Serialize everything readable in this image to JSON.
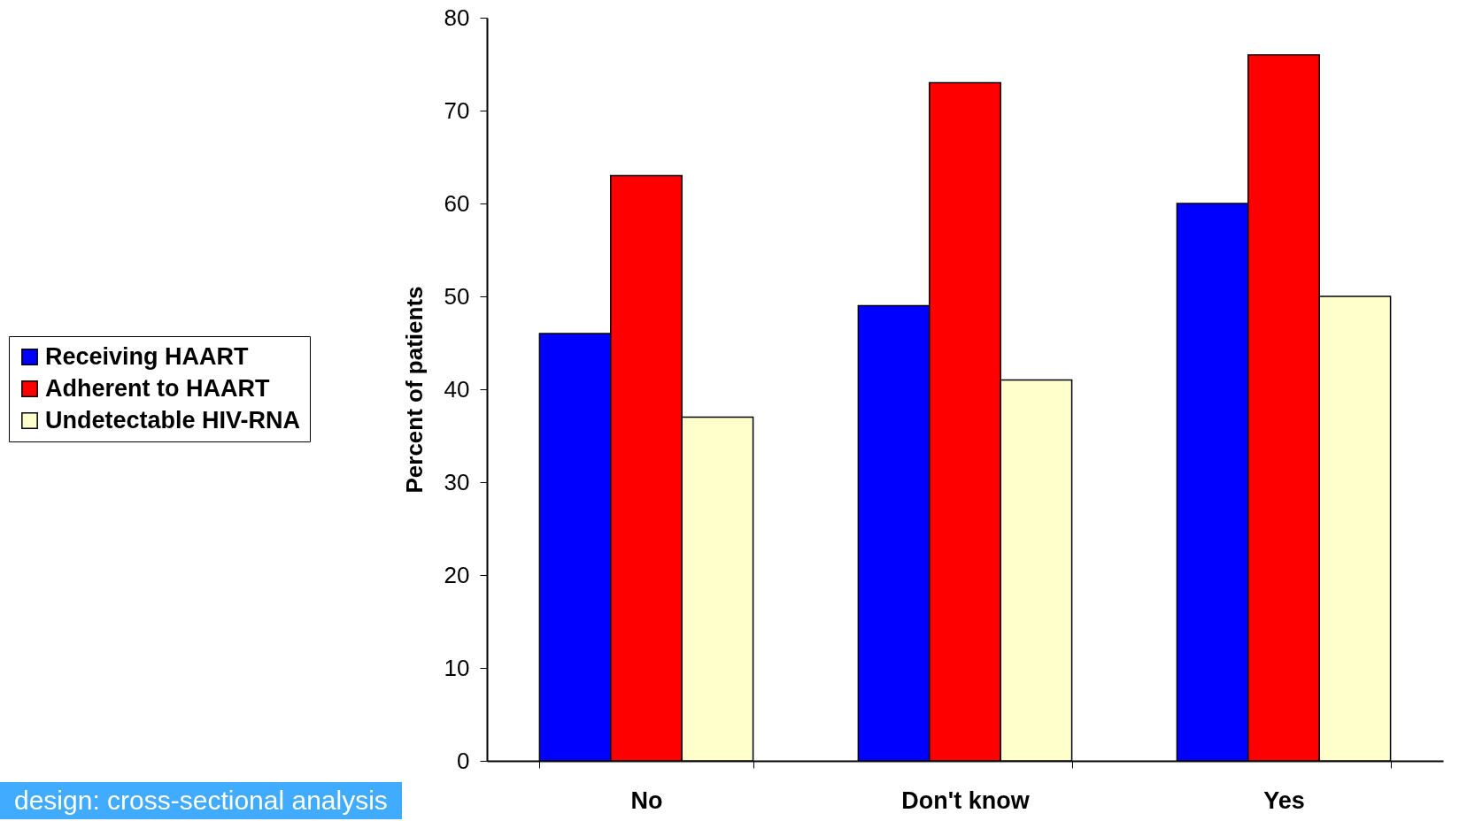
{
  "chart_data": {
    "type": "bar",
    "ylabel": "Percent of patients",
    "categories": [
      "No",
      "Don't know",
      "Yes"
    ],
    "series": [
      {
        "name": "Receiving HAART",
        "color": "#0000ff",
        "values": [
          46,
          49,
          60
        ]
      },
      {
        "name": "Adherent to HAART",
        "color": "#ff0000",
        "values": [
          63,
          73,
          76
        ]
      },
      {
        "name": "Undetectable HIV-RNA",
        "color": "#ffffcc",
        "values": [
          37,
          41,
          50
        ]
      }
    ],
    "ylim": [
      0,
      80
    ],
    "yticks": [
      0,
      10,
      20,
      30,
      40,
      50,
      60,
      70,
      80
    ],
    "grid": false,
    "legend": "left",
    "annotations": [
      "design: cross-sectional analysis"
    ]
  }
}
